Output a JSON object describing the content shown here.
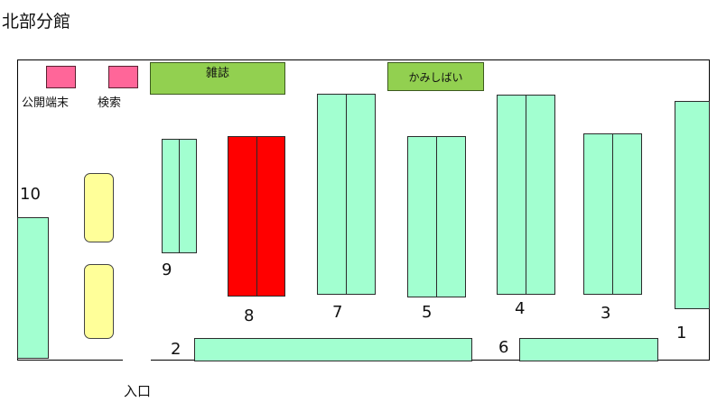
{
  "title": "北部分館",
  "terminals": {
    "public": "公開端末",
    "search": "検索"
  },
  "racks": {
    "magazines": "雑誌",
    "paper_theater": "かみしばい"
  },
  "shelf_numbers": {
    "s1": "1",
    "s2": "2",
    "s3": "3",
    "s4": "4",
    "s5": "5",
    "s6": "6",
    "s7": "7",
    "s8": "8",
    "s9": "9",
    "s10": "10"
  },
  "entrance": "入口",
  "colors": {
    "shelf": "#a2ffd0",
    "highlighted_shelf": "#ff0000",
    "rack": "#92d050",
    "terminal": "#ff6699",
    "table": "#ffff99"
  }
}
